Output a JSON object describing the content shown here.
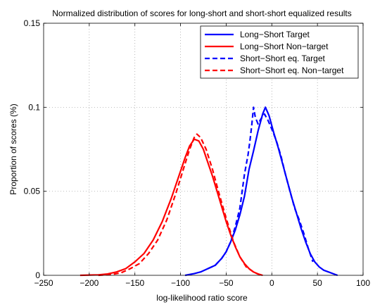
{
  "chart_data": {
    "type": "line",
    "title": "Normalized distribution of scores for long-short and short-short equalized results",
    "xlabel": "log-likelihood ratio score",
    "ylabel": "Proportion of scores (%)",
    "xlim": [
      -250,
      100
    ],
    "ylim": [
      0,
      0.15
    ],
    "xticks": [
      -250,
      -200,
      -150,
      -100,
      -50,
      0,
      50,
      100
    ],
    "yticks": [
      0,
      0.05,
      0.1,
      0.15
    ],
    "ytick_labels": [
      "0",
      "0.05",
      "0.1",
      "0.15"
    ],
    "grid": true,
    "legend_position": "top-right",
    "series": [
      {
        "name": "Long−Short Target",
        "color": "#0000ff",
        "style": "solid",
        "x": [
          -95,
          -85,
          -78,
          -70,
          -62,
          -55,
          -50,
          -45,
          -40,
          -35,
          -30,
          -25,
          -20,
          -15,
          -10,
          -7,
          -3,
          2,
          7,
          12,
          17,
          22,
          27,
          32,
          37,
          42,
          47,
          52,
          57,
          62,
          67,
          72
        ],
        "y": [
          0,
          0.001,
          0.002,
          0.004,
          0.006,
          0.01,
          0.014,
          0.02,
          0.027,
          0.036,
          0.047,
          0.063,
          0.074,
          0.086,
          0.096,
          0.1,
          0.095,
          0.085,
          0.076,
          0.066,
          0.056,
          0.046,
          0.037,
          0.028,
          0.02,
          0.013,
          0.008,
          0.005,
          0.003,
          0.002,
          0.001,
          0
        ]
      },
      {
        "name": "Long−Short Non−target",
        "color": "#ff0000",
        "style": "solid",
        "x": [
          -210,
          -190,
          -180,
          -170,
          -160,
          -150,
          -140,
          -130,
          -120,
          -110,
          -100,
          -95,
          -90,
          -85,
          -80,
          -75,
          -70,
          -65,
          -60,
          -55,
          -50,
          -45,
          -40,
          -35,
          -30,
          -25,
          -20,
          -15,
          -10
        ],
        "y": [
          0,
          0.0003,
          0.0008,
          0.002,
          0.004,
          0.008,
          0.013,
          0.021,
          0.032,
          0.046,
          0.062,
          0.07,
          0.077,
          0.081,
          0.08,
          0.075,
          0.067,
          0.059,
          0.05,
          0.041,
          0.032,
          0.024,
          0.017,
          0.011,
          0.007,
          0.004,
          0.002,
          0.0008,
          0
        ]
      },
      {
        "name": "Short−Short eq. Target",
        "color": "#0000ff",
        "style": "dashed",
        "x": [
          -70,
          -62,
          -55,
          -50,
          -45,
          -40,
          -35,
          -30,
          -26,
          -24,
          -22,
          -20,
          -18,
          -15,
          -12,
          -8,
          -4,
          0,
          5,
          10,
          15,
          20,
          25,
          30,
          35,
          40,
          45
        ],
        "y": [
          0.004,
          0.006,
          0.01,
          0.014,
          0.02,
          0.029,
          0.04,
          0.06,
          0.072,
          0.08,
          0.089,
          0.1,
          0.094,
          0.09,
          0.093,
          0.096,
          0.092,
          0.087,
          0.08,
          0.071,
          0.06,
          0.05,
          0.04,
          0.033,
          0.025,
          0.016,
          0.008
        ]
      },
      {
        "name": "Short−Short eq. Non−target",
        "color": "#ff0000",
        "style": "dashed",
        "x": [
          -190,
          -175,
          -165,
          -155,
          -145,
          -135,
          -125,
          -115,
          -105,
          -97,
          -90,
          -85,
          -82,
          -78,
          -72,
          -65,
          -58,
          -50,
          -42,
          -35,
          -28,
          -20,
          -12
        ],
        "y": [
          0,
          0.0005,
          0.0015,
          0.004,
          0.007,
          0.013,
          0.021,
          0.033,
          0.049,
          0.063,
          0.075,
          0.082,
          0.084,
          0.082,
          0.075,
          0.063,
          0.049,
          0.034,
          0.02,
          0.011,
          0.005,
          0.002,
          0
        ]
      }
    ]
  }
}
